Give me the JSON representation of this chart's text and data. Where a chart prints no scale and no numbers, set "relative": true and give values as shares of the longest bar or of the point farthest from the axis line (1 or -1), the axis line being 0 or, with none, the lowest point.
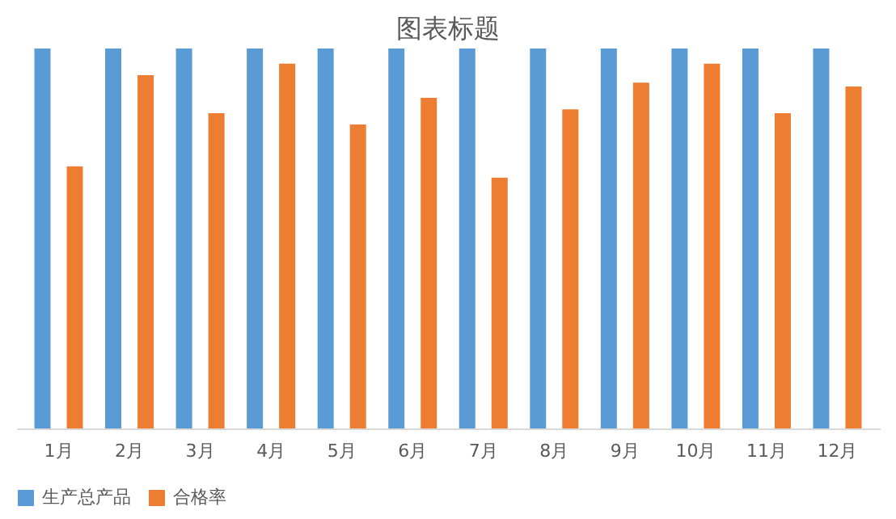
{
  "chart_data": {
    "type": "bar",
    "title": "图表标题",
    "relative": true,
    "categories": [
      "1月",
      "2月",
      "3月",
      "4月",
      "5月",
      "6月",
      "7月",
      "8月",
      "9月",
      "10月",
      "11月",
      "12月"
    ],
    "series": [
      {
        "name": "生产总产品",
        "color": "#5b9bd5",
        "values": [
          1,
          1,
          1,
          1,
          1,
          1,
          1,
          1,
          1,
          1,
          1,
          1
        ]
      },
      {
        "name": "合格率",
        "color": "#ed7d31",
        "values": [
          0.69,
          0.93,
          0.83,
          0.96,
          0.8,
          0.87,
          0.66,
          0.84,
          0.91,
          0.96,
          0.83,
          0.9
        ]
      }
    ],
    "grid": false,
    "legend": "bottom"
  }
}
